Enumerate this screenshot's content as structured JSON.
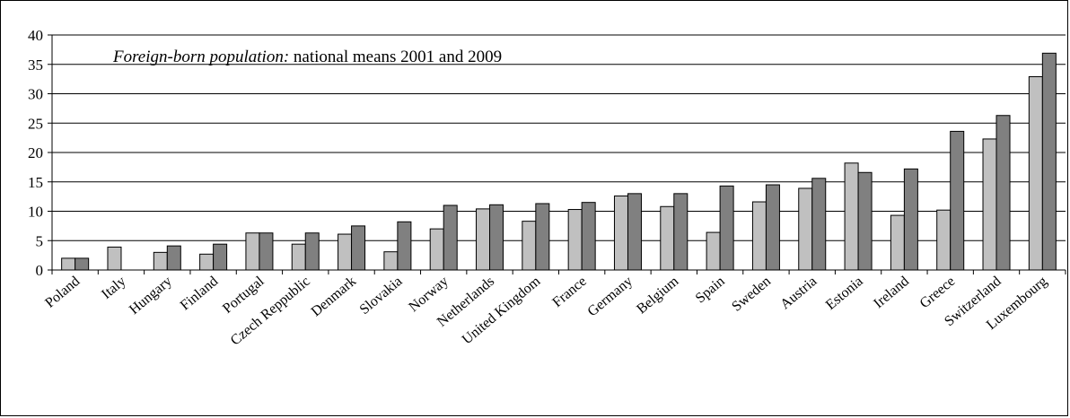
{
  "chart_data": {
    "type": "bar",
    "title_italic": "Foreign-born population:",
    "title_rest": " national means 2001 and 2009",
    "xlabel": "",
    "ylabel": "",
    "ylim": [
      0,
      40
    ],
    "yticks": [
      "0",
      "5",
      "10",
      "15",
      "20",
      "25",
      "30",
      "35",
      "40"
    ],
    "grid": true,
    "legend": "none",
    "categories": [
      "Poland",
      "Italy",
      "Hungary",
      "Finland",
      "Portugal",
      "Czech Reppublic",
      "Denmark",
      "Slovakia",
      "Norway",
      "Netherlands",
      "United Kingdom",
      "France",
      "Germany",
      "Belgium",
      "Spain",
      "Sweden",
      "Austria",
      "Estonia",
      "Ireland",
      "Greece",
      "Switzerland",
      "Luxembourg"
    ],
    "series": [
      {
        "color": "#c0c0c0",
        "values": [
          2.0,
          3.9,
          3.0,
          2.7,
          6.3,
          4.4,
          6.1,
          3.1,
          7.0,
          10.4,
          8.3,
          10.3,
          12.6,
          10.8,
          6.4,
          11.6,
          13.9,
          18.2,
          9.3,
          10.2,
          22.3,
          32.9
        ]
      },
      {
        "color": "#808080",
        "values": [
          2.0,
          null,
          4.1,
          4.4,
          6.3,
          6.3,
          7.5,
          8.2,
          11.0,
          11.1,
          11.3,
          11.5,
          13.0,
          13.0,
          14.3,
          14.5,
          15.6,
          16.6,
          17.2,
          23.6,
          26.3,
          36.9
        ]
      }
    ]
  }
}
